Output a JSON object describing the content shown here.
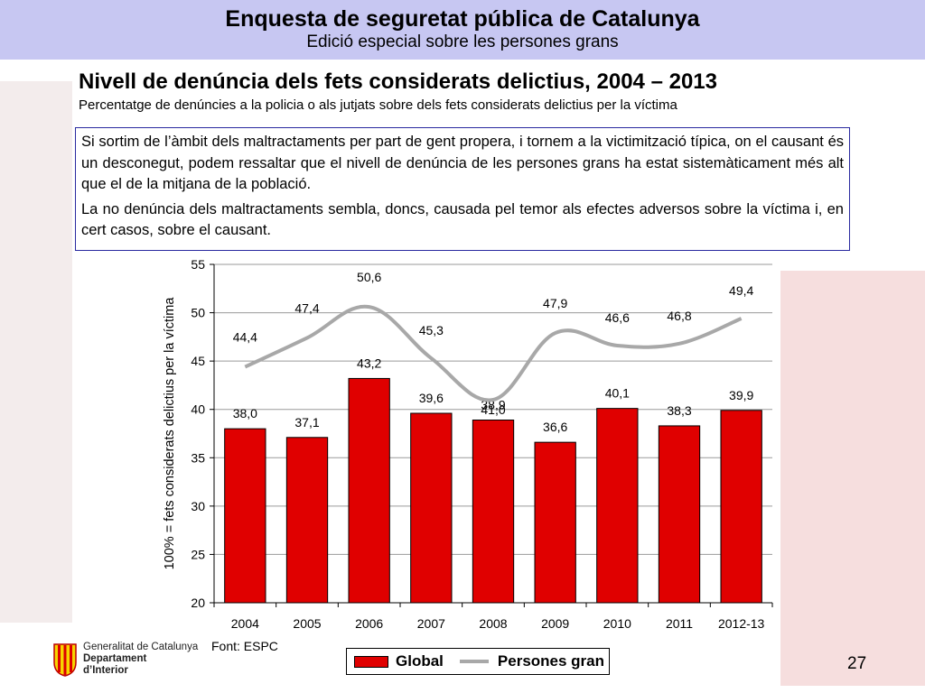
{
  "header": {
    "title": "Enquesta de seguretat pública de Catalunya",
    "subtitle": "Edició especial sobre les persones grans"
  },
  "slide": {
    "heading": "Nivell de denúncia dels fets considerats delictius, 2004 – 2013",
    "subheading": "Percentatge de denúncies a la policia o als jutjats sobre dels fets considerats delictius per la víctima",
    "note_paragraphs": [
      "Si sortim de l’àmbit dels maltractaments per part de gent propera, i tornem a la victimització típica, on el causant és un desconegut, podem ressaltar que el nivell de denúncia de les persones grans ha estat sistemàticament més alt que el de la mitjana de la població.",
      "La no denúncia dels maltractaments sembla, doncs, causada pel temor als efectes adversos sobre la víctima i, en cert casos, sobre el causant."
    ],
    "source": "Font: ESPC",
    "page_number": "27"
  },
  "logo": {
    "line1": "Generalitat de Catalunya",
    "line2": "Departament",
    "line3": "d’Interior"
  },
  "colors": {
    "bar": "#e00000",
    "line": "#a8a8a8",
    "banner": "#c7c7f2",
    "border": "#2a2aa0"
  },
  "chart_data": {
    "type": "bar",
    "categories": [
      "2004",
      "2005",
      "2006",
      "2007",
      "2008",
      "2009",
      "2010",
      "2011",
      "2012-13"
    ],
    "series": [
      {
        "name": "Global",
        "type": "bar",
        "values": [
          38.0,
          37.1,
          43.2,
          39.6,
          38.9,
          36.6,
          40.1,
          38.3,
          39.9
        ],
        "labels": [
          "38,0",
          "37,1",
          "43,2",
          "39,6",
          "38,9",
          "36,6",
          "40,1",
          "38,3",
          "39,9"
        ]
      },
      {
        "name": "Persones gran",
        "type": "line",
        "values": [
          44.4,
          47.4,
          50.6,
          45.3,
          41.0,
          47.9,
          46.6,
          46.8,
          49.4
        ],
        "labels": [
          "44,4",
          "47,4",
          "50,6",
          "45,3",
          "41,0",
          "47,9",
          "46,6",
          "46,8",
          "49,4"
        ]
      }
    ],
    "ylabel": "100% = fets considerats delictius per la víctima",
    "xlabel": "",
    "ylim": [
      20,
      55
    ],
    "yticks": [
      20,
      25,
      30,
      35,
      40,
      45,
      50,
      55
    ],
    "grid": true,
    "legend": "bottom"
  }
}
